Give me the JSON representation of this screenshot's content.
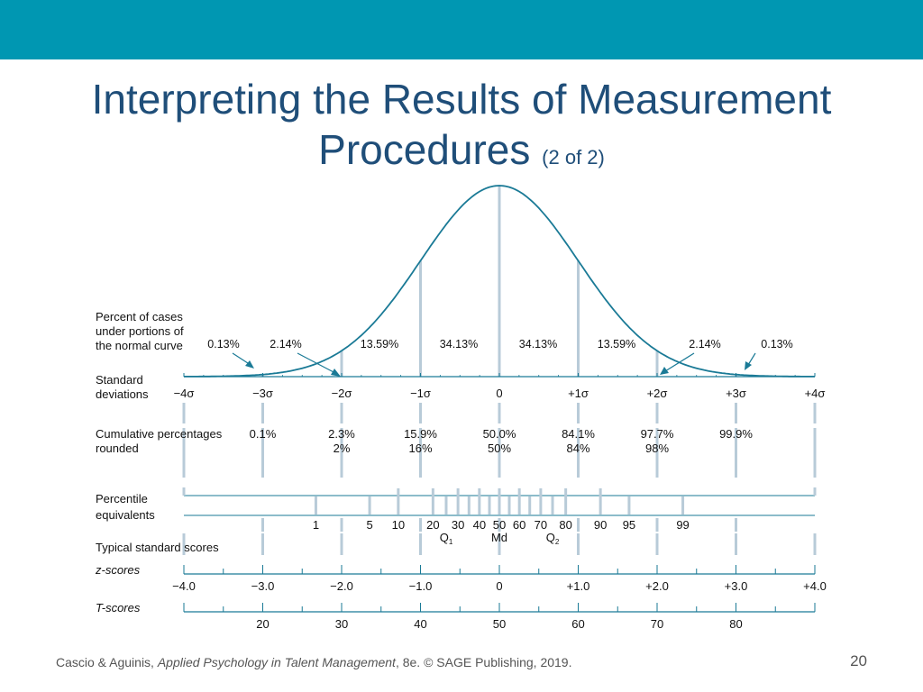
{
  "slide": {
    "title_main_line1": "Interpreting the Results of Measurement",
    "title_main_line2": "Procedures",
    "title_sub": "(2 of 2)",
    "footer_prefix": "Cascio & Aguinis, ",
    "footer_book": "Applied Psychology in Talent Management",
    "footer_suffix": ", 8e. © SAGE Publishing, 2019.",
    "page_number": "20"
  },
  "colors": {
    "accent_bar": "#0097b2",
    "title": "#1f4e79",
    "curve": "#1a7a96",
    "guide": "#b8cbd8"
  },
  "row_labels": {
    "percent_cases": [
      "Percent of cases",
      "under portions of",
      "the normal curve"
    ],
    "standard_deviations": [
      "Standard",
      "deviations"
    ],
    "cumulative": [
      "Cumulative percentages",
      "rounded"
    ],
    "percentile": [
      "Percentile",
      "equivalents"
    ],
    "typical_scores": "Typical standard scores",
    "z_scores": "z-scores",
    "t_scores": "T-scores"
  },
  "chart_data": {
    "type": "normal-distribution",
    "sigma_range": [
      -4,
      4
    ],
    "sigma_labels": [
      "−4σ",
      "−3σ",
      "−2σ",
      "−1σ",
      "0",
      "+1σ",
      "+2σ",
      "+3σ",
      "+4σ"
    ],
    "area_percents": [
      {
        "label": "0.13%",
        "from": -4,
        "to": -3
      },
      {
        "label": "2.14%",
        "from": -3,
        "to": -2
      },
      {
        "label": "13.59%",
        "from": -2,
        "to": -1
      },
      {
        "label": "34.13%",
        "from": -1,
        "to": 0
      },
      {
        "label": "34.13%",
        "from": 0,
        "to": 1
      },
      {
        "label": "13.59%",
        "from": 1,
        "to": 2
      },
      {
        "label": "2.14%",
        "from": 2,
        "to": 3
      },
      {
        "label": "0.13%",
        "from": 3,
        "to": 4
      }
    ],
    "cumulative": [
      {
        "z": -3,
        "pct": "0.1%",
        "rounded": ""
      },
      {
        "z": -2,
        "pct": "2.3%",
        "rounded": "2%"
      },
      {
        "z": -1,
        "pct": "15.9%",
        "rounded": "16%"
      },
      {
        "z": 0,
        "pct": "50.0%",
        "rounded": "50%"
      },
      {
        "z": 1,
        "pct": "84.1%",
        "rounded": "84%"
      },
      {
        "z": 2,
        "pct": "97.7%",
        "rounded": "98%"
      },
      {
        "z": 3,
        "pct": "99.9%",
        "rounded": ""
      }
    ],
    "percentiles": [
      {
        "p": 1,
        "label": "1"
      },
      {
        "p": 5,
        "label": "5"
      },
      {
        "p": 10,
        "label": "10"
      },
      {
        "p": 20,
        "label": "20"
      },
      {
        "p": 25,
        "label": ""
      },
      {
        "p": 30,
        "label": "30"
      },
      {
        "p": 35,
        "label": ""
      },
      {
        "p": 40,
        "label": "40"
      },
      {
        "p": 45,
        "label": ""
      },
      {
        "p": 50,
        "label": "50"
      },
      {
        "p": 55,
        "label": ""
      },
      {
        "p": 60,
        "label": "60"
      },
      {
        "p": 65,
        "label": ""
      },
      {
        "p": 70,
        "label": "70"
      },
      {
        "p": 75,
        "label": ""
      },
      {
        "p": 80,
        "label": "80"
      },
      {
        "p": 90,
        "label": "90"
      },
      {
        "p": 95,
        "label": "95"
      },
      {
        "p": 99,
        "label": "99"
      }
    ],
    "quartile_marks": [
      {
        "label": "Q",
        "sub": "1",
        "p": 25
      },
      {
        "label": "Md",
        "sub": "",
        "p": 50
      },
      {
        "label": "Q",
        "sub": "2",
        "p": 75
      }
    ],
    "z_scores": [
      {
        "z": -4,
        "label": "−4.0"
      },
      {
        "z": -3,
        "label": "−3.0"
      },
      {
        "z": -2,
        "label": "−2.0"
      },
      {
        "z": -1,
        "label": "−1.0"
      },
      {
        "z": 0,
        "label": "0"
      },
      {
        "z": 1,
        "label": "+1.0"
      },
      {
        "z": 2,
        "label": "+2.0"
      },
      {
        "z": 3,
        "label": "+3.0"
      },
      {
        "z": 4,
        "label": "+4.0"
      }
    ],
    "t_scores": [
      {
        "z": -3,
        "label": "20"
      },
      {
        "z": -2,
        "label": "30"
      },
      {
        "z": -1,
        "label": "40"
      },
      {
        "z": 0,
        "label": "50"
      },
      {
        "z": 1,
        "label": "60"
      },
      {
        "z": 2,
        "label": "70"
      },
      {
        "z": 3,
        "label": "80"
      }
    ]
  }
}
